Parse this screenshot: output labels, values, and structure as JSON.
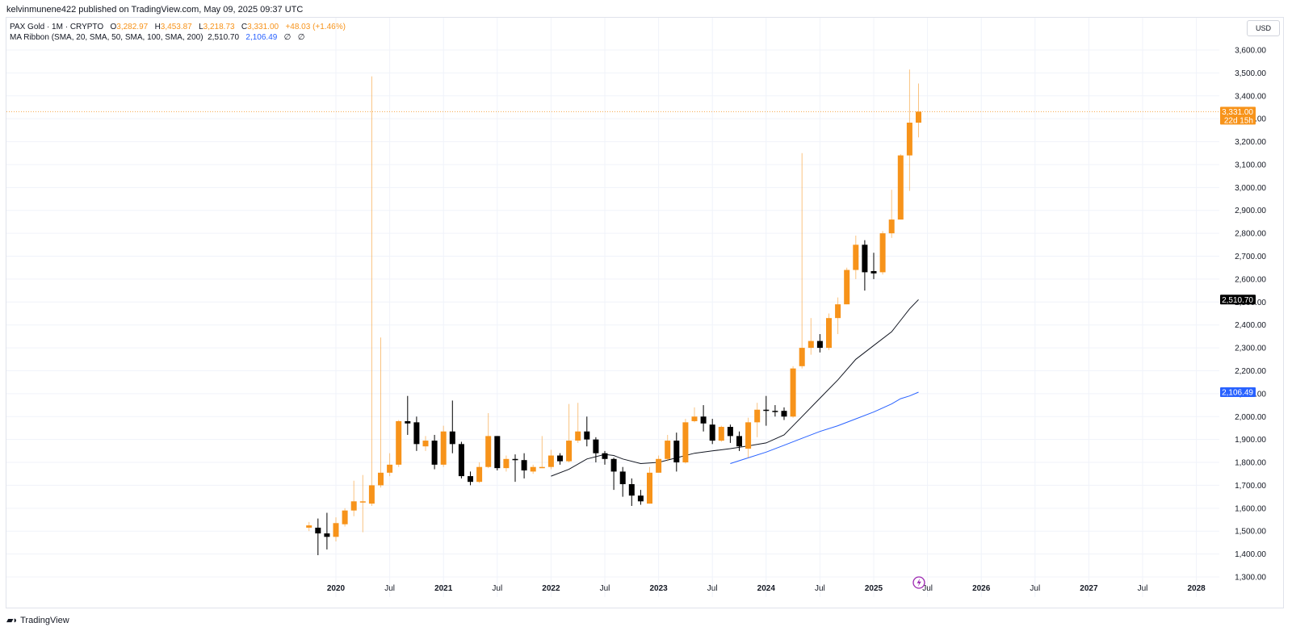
{
  "header": {
    "publish_line": "kelvinmunene422 published on TradingView.com, May 09, 2025 09:37 UTC"
  },
  "legend": {
    "symbol": "PAX Gold · 1M · CRYPTO",
    "o_label": "O",
    "o_value": "3,282.97",
    "h_label": "H",
    "h_value": "3,453.87",
    "l_label": "L",
    "l_value": "3,218.73",
    "c_label": "C",
    "c_value": "3,331.00",
    "change": "+48.03 (+1.46%)",
    "ma_label": "MA Ribbon (SMA, 20, SMA, 50, SMA, 100, SMA, 200)",
    "ma20_value": "2,510.70",
    "ma50_value": "2,106.49",
    "ma100_value": "∅",
    "ma200_value": "∅"
  },
  "currency_button": "USD",
  "footer": {
    "brand": "TradingView"
  },
  "colors": {
    "up": "#f7931a",
    "down": "#000000",
    "ma20": "#131722",
    "ma50": "#2962ff",
    "grid": "#f0f3fa"
  },
  "chart_data": {
    "type": "candlestick",
    "interval": "1M",
    "y_axis": {
      "ticks": [
        "1,300.00",
        "1,400.00",
        "1,500.00",
        "1,600.00",
        "1,700.00",
        "1,800.00",
        "1,900.00",
        "2,000.00",
        "2,100.00",
        "2,200.00",
        "2,300.00",
        "2,400.00",
        "2,500.00",
        "2,600.00",
        "2,700.00",
        "2,800.00",
        "2,900.00",
        "3,000.00",
        "3,100.00",
        "3,200.00",
        "3,300.00",
        "3,400.00",
        "3,500.00",
        "3,600.00"
      ],
      "range": [
        1270,
        3660
      ],
      "scale": "linear"
    },
    "x_axis": {
      "labels": [
        {
          "text": "2020",
          "month": 0,
          "bold": true
        },
        {
          "text": "Jul",
          "month": 6,
          "bold": false
        },
        {
          "text": "2021",
          "month": 12,
          "bold": true
        },
        {
          "text": "Jul",
          "month": 18,
          "bold": false
        },
        {
          "text": "2022",
          "month": 24,
          "bold": true
        },
        {
          "text": "Jul",
          "month": 30,
          "bold": false
        },
        {
          "text": "2023",
          "month": 36,
          "bold": true
        },
        {
          "text": "Jul",
          "month": 42,
          "bold": false
        },
        {
          "text": "2024",
          "month": 48,
          "bold": true
        },
        {
          "text": "Jul",
          "month": 54,
          "bold": false
        },
        {
          "text": "2025",
          "month": 60,
          "bold": true
        },
        {
          "text": "Jul",
          "month": 66,
          "bold": false
        },
        {
          "text": "2026",
          "month": 72,
          "bold": true
        },
        {
          "text": "Jul",
          "month": 78,
          "bold": false
        },
        {
          "text": "2027",
          "month": 84,
          "bold": true
        },
        {
          "text": "Jul",
          "month": 90,
          "bold": false
        },
        {
          "text": "2028",
          "month": 96,
          "bold": true
        }
      ]
    },
    "candles": [
      {
        "month": -3,
        "o": 1515,
        "h": 1540,
        "l": 1500,
        "c": 1525
      },
      {
        "month": -2,
        "o": 1515,
        "h": 1555,
        "l": 1395,
        "c": 1490
      },
      {
        "month": -1,
        "o": 1490,
        "h": 1580,
        "l": 1420,
        "c": 1475
      },
      {
        "month": 0,
        "o": 1475,
        "h": 1560,
        "l": 1455,
        "c": 1535
      },
      {
        "month": 1,
        "o": 1530,
        "h": 1600,
        "l": 1520,
        "c": 1590
      },
      {
        "month": 2,
        "o": 1590,
        "h": 1720,
        "l": 1565,
        "c": 1630
      },
      {
        "month": 3,
        "o": 1625,
        "h": 1745,
        "l": 1495,
        "c": 1630
      },
      {
        "month": 4,
        "o": 1620,
        "h": 3485,
        "l": 1610,
        "c": 1700
      },
      {
        "month": 5,
        "o": 1700,
        "h": 2345,
        "l": 1690,
        "c": 1755
      },
      {
        "month": 6,
        "o": 1755,
        "h": 1840,
        "l": 1740,
        "c": 1790
      },
      {
        "month": 7,
        "o": 1790,
        "h": 1985,
        "l": 1780,
        "c": 1980
      },
      {
        "month": 8,
        "o": 1980,
        "h": 2090,
        "l": 1920,
        "c": 1970
      },
      {
        "month": 9,
        "o": 1975,
        "h": 2000,
        "l": 1850,
        "c": 1880
      },
      {
        "month": 10,
        "o": 1870,
        "h": 1915,
        "l": 1850,
        "c": 1895
      },
      {
        "month": 11,
        "o": 1895,
        "h": 1920,
        "l": 1770,
        "c": 1790
      },
      {
        "month": 12,
        "o": 1790,
        "h": 1960,
        "l": 1780,
        "c": 1935
      },
      {
        "month": 13,
        "o": 1935,
        "h": 2070,
        "l": 1840,
        "c": 1880
      },
      {
        "month": 14,
        "o": 1880,
        "h": 1890,
        "l": 1730,
        "c": 1740
      },
      {
        "month": 15,
        "o": 1740,
        "h": 1760,
        "l": 1700,
        "c": 1715
      },
      {
        "month": 16,
        "o": 1715,
        "h": 1800,
        "l": 1710,
        "c": 1780
      },
      {
        "month": 17,
        "o": 1780,
        "h": 2015,
        "l": 1775,
        "c": 1915
      },
      {
        "month": 18,
        "o": 1915,
        "h": 1915,
        "l": 1765,
        "c": 1775
      },
      {
        "month": 19,
        "o": 1775,
        "h": 1830,
        "l": 1760,
        "c": 1815
      },
      {
        "month": 20,
        "o": 1815,
        "h": 1835,
        "l": 1715,
        "c": 1810
      },
      {
        "month": 21,
        "o": 1810,
        "h": 1840,
        "l": 1730,
        "c": 1765
      },
      {
        "month": 22,
        "o": 1760,
        "h": 1790,
        "l": 1750,
        "c": 1780
      },
      {
        "month": 23,
        "o": 1780,
        "h": 1915,
        "l": 1775,
        "c": 1780
      },
      {
        "month": 24,
        "o": 1780,
        "h": 1855,
        "l": 1770,
        "c": 1830
      },
      {
        "month": 25,
        "o": 1830,
        "h": 1840,
        "l": 1790,
        "c": 1805
      },
      {
        "month": 26,
        "o": 1805,
        "h": 2055,
        "l": 1800,
        "c": 1895
      },
      {
        "month": 27,
        "o": 1895,
        "h": 2060,
        "l": 1885,
        "c": 1935
      },
      {
        "month": 28,
        "o": 1935,
        "h": 2000,
        "l": 1870,
        "c": 1900
      },
      {
        "month": 29,
        "o": 1900,
        "h": 1910,
        "l": 1800,
        "c": 1840
      },
      {
        "month": 30,
        "o": 1840,
        "h": 1850,
        "l": 1790,
        "c": 1815
      },
      {
        "month": 31,
        "o": 1815,
        "h": 1820,
        "l": 1680,
        "c": 1760
      },
      {
        "month": 32,
        "o": 1760,
        "h": 1780,
        "l": 1650,
        "c": 1705
      },
      {
        "month": 33,
        "o": 1705,
        "h": 1730,
        "l": 1610,
        "c": 1655
      },
      {
        "month": 34,
        "o": 1655,
        "h": 1680,
        "l": 1615,
        "c": 1630
      },
      {
        "month": 35,
        "o": 1620,
        "h": 1780,
        "l": 1620,
        "c": 1755
      },
      {
        "month": 36,
        "o": 1755,
        "h": 1830,
        "l": 1755,
        "c": 1815
      },
      {
        "month": 37,
        "o": 1815,
        "h": 1920,
        "l": 1805,
        "c": 1895
      },
      {
        "month": 38,
        "o": 1895,
        "h": 1930,
        "l": 1760,
        "c": 1800
      },
      {
        "month": 39,
        "o": 1800,
        "h": 1990,
        "l": 1795,
        "c": 1975
      },
      {
        "month": 40,
        "o": 1980,
        "h": 2040,
        "l": 1975,
        "c": 2000
      },
      {
        "month": 41,
        "o": 2000,
        "h": 2050,
        "l": 1935,
        "c": 1970
      },
      {
        "month": 42,
        "o": 1965,
        "h": 1990,
        "l": 1880,
        "c": 1895
      },
      {
        "month": 43,
        "o": 1895,
        "h": 1960,
        "l": 1890,
        "c": 1955
      },
      {
        "month": 44,
        "o": 1955,
        "h": 1965,
        "l": 1885,
        "c": 1915
      },
      {
        "month": 45,
        "o": 1915,
        "h": 1935,
        "l": 1850,
        "c": 1870
      },
      {
        "month": 46,
        "o": 1860,
        "h": 1995,
        "l": 1820,
        "c": 1975
      },
      {
        "month": 47,
        "o": 1975,
        "h": 2060,
        "l": 1910,
        "c": 2030
      },
      {
        "month": 48,
        "o": 2030,
        "h": 2090,
        "l": 1960,
        "c": 2025
      },
      {
        "month": 49,
        "o": 2025,
        "h": 2050,
        "l": 2000,
        "c": 2020
      },
      {
        "month": 50,
        "o": 2025,
        "h": 2040,
        "l": 1985,
        "c": 2000
      },
      {
        "month": 51,
        "o": 2000,
        "h": 2220,
        "l": 1995,
        "c": 2210
      },
      {
        "month": 52,
        "o": 2220,
        "h": 3150,
        "l": 2210,
        "c": 2300
      },
      {
        "month": 53,
        "o": 2300,
        "h": 2430,
        "l": 2270,
        "c": 2330
      },
      {
        "month": 54,
        "o": 2330,
        "h": 2360,
        "l": 2280,
        "c": 2300
      },
      {
        "month": 55,
        "o": 2300,
        "h": 2450,
        "l": 2290,
        "c": 2430
      },
      {
        "month": 56,
        "o": 2430,
        "h": 2520,
        "l": 2360,
        "c": 2490
      },
      {
        "month": 57,
        "o": 2490,
        "h": 2650,
        "l": 2490,
        "c": 2640
      },
      {
        "month": 58,
        "o": 2640,
        "h": 2790,
        "l": 2600,
        "c": 2750
      },
      {
        "month": 59,
        "o": 2750,
        "h": 2770,
        "l": 2550,
        "c": 2630
      },
      {
        "month": 60,
        "o": 2635,
        "h": 2715,
        "l": 2600,
        "c": 2625
      },
      {
        "month": 61,
        "o": 2630,
        "h": 2810,
        "l": 2620,
        "c": 2800
      },
      {
        "month": 62,
        "o": 2800,
        "h": 2990,
        "l": 2780,
        "c": 2860
      },
      {
        "month": 63,
        "o": 2860,
        "h": 3145,
        "l": 2860,
        "c": 3140
      },
      {
        "month": 64,
        "o": 3140,
        "h": 3515,
        "l": 2985,
        "c": 3282.97
      },
      {
        "month": 65,
        "o": 3282.97,
        "h": 3453.87,
        "l": 3218.73,
        "c": 3331.0
      }
    ],
    "series": [
      {
        "name": "SMA 20",
        "points": [
          [
            24,
            1740
          ],
          [
            26,
            1770
          ],
          [
            28,
            1815
          ],
          [
            30,
            1835
          ],
          [
            31,
            1830
          ],
          [
            32,
            1815
          ],
          [
            34,
            1795
          ],
          [
            36,
            1800
          ],
          [
            38,
            1820
          ],
          [
            40,
            1840
          ],
          [
            42,
            1850
          ],
          [
            44,
            1860
          ],
          [
            46,
            1872
          ],
          [
            48,
            1885
          ],
          [
            50,
            1920
          ],
          [
            52,
            2000
          ],
          [
            54,
            2080
          ],
          [
            56,
            2160
          ],
          [
            58,
            2250
          ],
          [
            60,
            2310
          ],
          [
            62,
            2370
          ],
          [
            63,
            2420
          ],
          [
            64,
            2470
          ],
          [
            65,
            2510.7
          ]
        ]
      },
      {
        "name": "SMA 50",
        "points": [
          [
            44,
            1795
          ],
          [
            46,
            1820
          ],
          [
            48,
            1845
          ],
          [
            50,
            1875
          ],
          [
            52,
            1905
          ],
          [
            54,
            1935
          ],
          [
            56,
            1960
          ],
          [
            58,
            1990
          ],
          [
            60,
            2020
          ],
          [
            62,
            2055
          ],
          [
            63,
            2078
          ],
          [
            64,
            2090
          ],
          [
            65,
            2106.49
          ]
        ]
      }
    ],
    "price_tags": [
      {
        "value": 3331.0,
        "label": "3,331.00",
        "sublabel": "22d 15h",
        "color": "#f7931a"
      },
      {
        "value": 2510.7,
        "label": "2,510.70",
        "color": "#000000"
      },
      {
        "value": 2106.49,
        "label": "2,106.49",
        "color": "#2962ff"
      }
    ]
  }
}
